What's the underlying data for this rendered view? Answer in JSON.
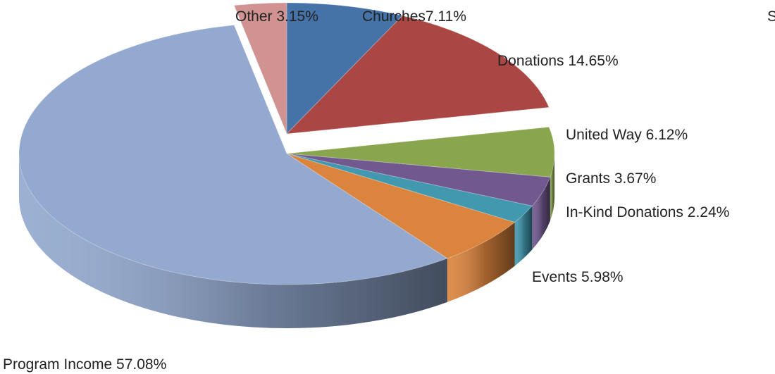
{
  "chart_data": {
    "type": "pie",
    "style": "3d-exploded-perspective",
    "title": "",
    "slices": [
      {
        "label": "Churches7.11%",
        "name": "Churches",
        "value": 7.11,
        "color": "#4572A7"
      },
      {
        "label": "Donations 14.65%",
        "name": "Donations",
        "value": 14.65,
        "color": "#AA4643"
      },
      {
        "label": "United Way 6.12%",
        "name": "United Way",
        "value": 6.12,
        "color": "#89A54E"
      },
      {
        "label": "Grants 3.67%",
        "name": "Grants",
        "value": 3.67,
        "color": "#71588F"
      },
      {
        "label": "In-Kind Donations 2.24%",
        "name": "In-Kind Donations",
        "value": 2.24,
        "color": "#4198AF"
      },
      {
        "label": "Events 5.98%",
        "name": "Events",
        "value": 5.98,
        "color": "#DB843D"
      },
      {
        "label": "Program Income 57.08%",
        "name": "Program Income",
        "value": 57.08,
        "color": "#93A9CF"
      },
      {
        "label": "Other 3.15%",
        "name": "Other",
        "value": 3.15,
        "color": "#D09392"
      }
    ],
    "edge_text": "S"
  }
}
